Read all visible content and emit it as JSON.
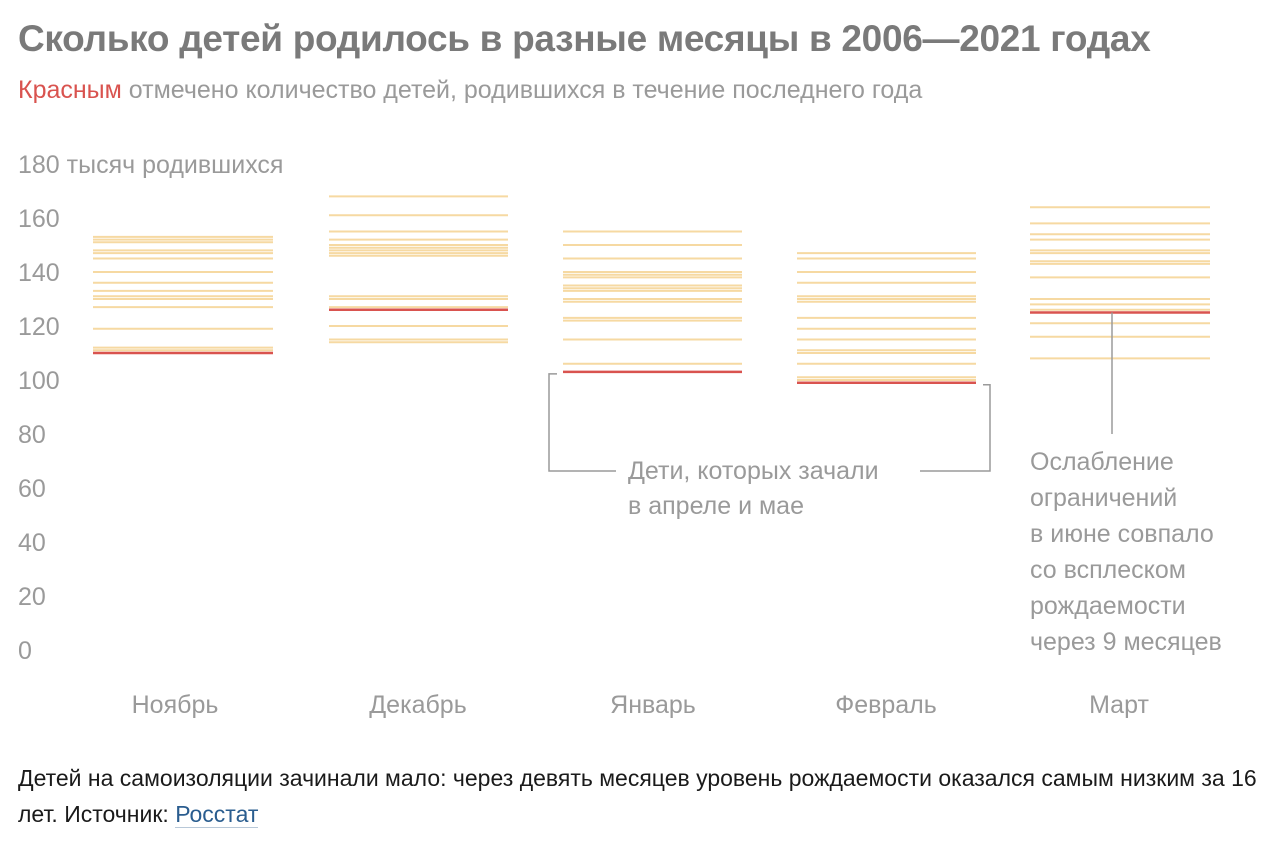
{
  "title": "Сколько детей родилось в разные месяцы в 2006—2021 годах",
  "subtitle": {
    "highlight": "Красным",
    "rest": " отмечено количество детей, родившихся в течение последнего года"
  },
  "caption": {
    "text": "Детей на самоизоляции зачинали мало: через девять месяцев уровень рождаемости оказался самым низким за 16 лет. Источник: ",
    "source_link": "Росстат"
  },
  "colors": {
    "historical": "#f6d9a2",
    "latest": "#d9534f",
    "axis_text": "#9a9a9a",
    "annotation_line": "#9a9a9a"
  },
  "chart_data": {
    "type": "strip",
    "title": "Сколько детей родилось в разные месяцы в 2006—2021 годах",
    "ylabel": "тысяч родившихся",
    "ylim": [
      0,
      180
    ],
    "y_ticks": [
      0,
      20,
      40,
      60,
      80,
      100,
      120,
      140,
      160,
      180
    ],
    "y_top_label": "180 тысяч родившихся",
    "categories": [
      "Ноябрь",
      "Декабрь",
      "Январь",
      "Февраль",
      "Март"
    ],
    "series": [
      {
        "name": "Ноябрь",
        "historical": [
          153,
          152,
          151,
          148,
          147,
          145,
          140,
          136,
          133,
          131,
          130,
          127,
          119,
          112,
          111
        ],
        "latest": 110
      },
      {
        "name": "Декабрь",
        "historical": [
          168,
          161,
          155,
          152,
          150,
          149,
          148,
          147,
          146,
          131,
          130,
          127,
          120,
          115,
          114
        ],
        "latest": 126
      },
      {
        "name": "Январь",
        "historical": [
          155,
          150,
          145,
          140,
          139,
          138,
          135,
          134,
          133,
          130,
          129,
          123,
          122,
          115,
          106
        ],
        "latest": 103
      },
      {
        "name": "Февраль",
        "historical": [
          147,
          145,
          140,
          136,
          131,
          130,
          129,
          123,
          119,
          115,
          111,
          110,
          106,
          101,
          100
        ],
        "latest": 99
      },
      {
        "name": "Март",
        "historical": [
          164,
          158,
          154,
          152,
          148,
          147,
          144,
          143,
          138,
          130,
          128,
          126,
          121,
          116,
          108
        ],
        "latest": 125
      }
    ],
    "annotations": [
      {
        "text_lines": [
          "Дети, которых зачали",
          "в апреле и мае"
        ]
      },
      {
        "text_lines": [
          "Ослабление",
          "ограничений",
          "в июне совпало",
          "со всплеском",
          "рождаемости",
          "через 9 месяцев"
        ]
      }
    ]
  }
}
